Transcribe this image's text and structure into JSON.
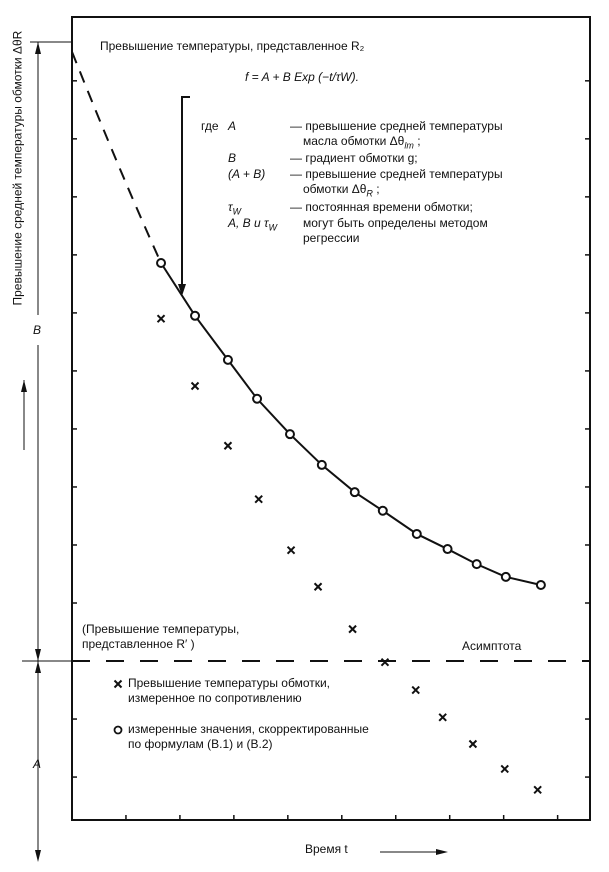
{
  "chart_data": {
    "type": "scatter",
    "title": "Превышение температуры, представленное R₂",
    "formula": "f = A + B Exp (−t/τW).",
    "xlabel": "Время t",
    "ylabel": "Превышение средней температуры обмотки ΔθR",
    "xlim": [
      0,
      9.6
    ],
    "ylim": [
      -2.74,
      11.1
    ],
    "grid": false,
    "x_ticks_labeled": false,
    "y_ticks_labeled": false,
    "asymptote": {
      "y": 0,
      "label": "Асимптота"
    },
    "span_labels": {
      "B": "B",
      "A": "A"
    },
    "lower_curve_label": [
      "(Превышение температуры,",
      "представленное R′ )"
    ],
    "series": [
      {
        "marker": "circle",
        "legend": [
          "измеренные значения, скорректированные",
          "по формулам (B.1)  и  (B.2)"
        ],
        "x": [
          1.65,
          2.28,
          2.89,
          3.43,
          4.04,
          4.63,
          5.24,
          5.76,
          6.39,
          6.96,
          7.5,
          8.04,
          8.69
        ],
        "y": [
          6.86,
          5.95,
          5.19,
          4.52,
          3.91,
          3.38,
          2.91,
          2.59,
          2.19,
          1.93,
          1.67,
          1.45,
          1.31
        ]
      },
      {
        "marker": "cross",
        "legend": [
          "Превышение температуры обмотки,",
          "измеренное по сопротивлению"
        ],
        "x": [
          1.65,
          2.28,
          2.89,
          3.46,
          4.06,
          4.56,
          5.2,
          5.8,
          6.37,
          6.87,
          7.43,
          8.02,
          8.63
        ],
        "y": [
          5.9,
          4.74,
          3.71,
          2.79,
          1.91,
          1.28,
          0.55,
          -0.02,
          -0.5,
          -0.97,
          -1.43,
          -1.86,
          -2.22
        ]
      }
    ],
    "fit_curve": {
      "extrapolated_start": [
        0,
        10.5
      ]
    },
    "legend_placement": "bottom-left"
  },
  "text": {
    "where": "где",
    "defs": [
      {
        "sym": "A",
        "desc1": "— превышение средней температуры",
        "desc2": "масла обмотки Δθ",
        "sub2": "lm",
        "tail2": " ;"
      },
      {
        "sym": "B",
        "desc1": "— градиент обмотки g;"
      },
      {
        "sym": "(A + B)",
        "desc1": "— превышение средней температуры",
        "desc2": "обмотки Δθ",
        "sub2": "R",
        "tail2": " ;"
      },
      {
        "sym": "τ",
        "symsub": "W",
        "desc1": "— постоянная времени обмотки;"
      },
      {
        "sym": "A, B и τ",
        "symsub": "W",
        "desc1": "могут быть определены методом",
        "desc2": "регрессии"
      }
    ]
  },
  "colors": {
    "ink": "#111111",
    "background": "#ffffff"
  }
}
